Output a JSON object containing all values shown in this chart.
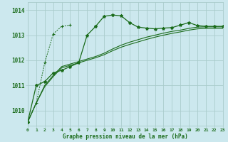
{
  "title": "Graphe pression niveau de la mer (hPa)",
  "background_color": "#cce8ee",
  "grid_color": "#aacccc",
  "line_color": "#1a6b1a",
  "x_values": [
    0,
    1,
    2,
    3,
    4,
    5,
    6,
    7,
    8,
    9,
    10,
    11,
    12,
    13,
    14,
    15,
    16,
    17,
    18,
    19,
    20,
    21,
    22,
    23
  ],
  "series": [
    [
      1009.55,
      1011.0,
      1011.15,
      1011.5,
      1011.6,
      1011.75,
      1011.9,
      1013.0,
      1013.35,
      1013.75,
      1013.8,
      1013.77,
      1013.5,
      1013.32,
      1013.28,
      1013.25,
      1013.28,
      1013.3,
      1013.4,
      1013.5,
      1013.38,
      1013.35,
      1013.35,
      1013.35
    ],
    [
      1009.55,
      1010.3,
      1011.9,
      1013.05,
      1013.35,
      1013.4,
      null,
      null,
      null,
      null,
      null,
      null,
      null,
      null,
      null,
      null,
      null,
      null,
      null,
      null,
      null,
      null,
      null,
      null
    ],
    [
      1009.55,
      1010.3,
      1011.0,
      1011.4,
      1011.75,
      1011.85,
      1011.95,
      1012.05,
      1012.15,
      1012.28,
      1012.45,
      1012.6,
      1012.72,
      1012.82,
      1012.92,
      1013.0,
      1013.08,
      1013.15,
      1013.2,
      1013.27,
      1013.32,
      1013.33,
      1013.33,
      1013.33
    ],
    [
      1009.55,
      1010.3,
      1010.95,
      1011.35,
      1011.7,
      1011.8,
      1011.9,
      1012.0,
      1012.1,
      1012.22,
      1012.38,
      1012.52,
      1012.63,
      1012.73,
      1012.83,
      1012.92,
      1013.0,
      1013.07,
      1013.13,
      1013.2,
      1013.25,
      1013.27,
      1013.27,
      1013.27
    ]
  ],
  "ylim": [
    1009.4,
    1014.3
  ],
  "yticks": [
    1010,
    1011,
    1012,
    1013,
    1014
  ],
  "xlim": [
    0,
    23
  ],
  "xticks": [
    0,
    1,
    2,
    3,
    4,
    5,
    6,
    7,
    8,
    9,
    10,
    11,
    12,
    13,
    14,
    15,
    16,
    17,
    18,
    19,
    20,
    21,
    22,
    23
  ]
}
